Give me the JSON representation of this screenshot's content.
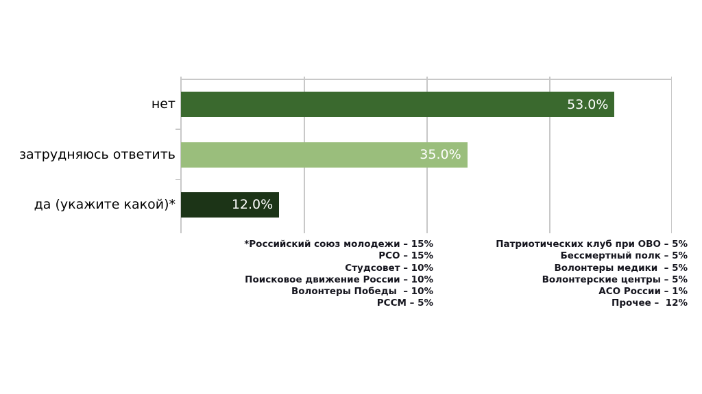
{
  "chart_data": {
    "type": "bar",
    "orientation": "horizontal",
    "title": "",
    "xlabel": "",
    "ylabel": "",
    "categories": [
      "нет",
      "затрудняюсь ответить",
      "да (укажите какой)*"
    ],
    "values": [
      53.0,
      35.0,
      12.0
    ],
    "value_labels": [
      "53.0%",
      "35.0%",
      "12.0%"
    ],
    "bar_colors": [
      "#3a692e",
      "#9abe7c",
      "#1c3417"
    ],
    "xlim": [
      0,
      60
    ],
    "gridlines_x": [
      15,
      30,
      45
    ],
    "grid": true,
    "legend": false,
    "value_label_color": "#ffffff"
  },
  "footnotes": {
    "left": [
      "*Российский союз молодежи – 15%",
      "РСО – 15%",
      "Студсовет – 10%",
      "Поисковое движение России – 10%",
      "Волонтеры Победы  – 10%",
      "РССМ – 5%"
    ],
    "right": [
      "Патриотических клуб при ОВО – 5%",
      "Бессмертный полк – 5%",
      "Волонтеры медики  – 5%",
      "Волонтерские центры – 5%",
      "АСО России – 1%",
      "Прочее –  12%"
    ]
  },
  "colors": {
    "background": "#ffffff",
    "gridline": "#c8c8c8",
    "category_label": "#000000",
    "footnote_text": "#15151e"
  }
}
